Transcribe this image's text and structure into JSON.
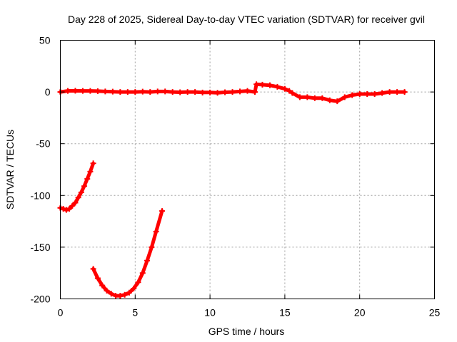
{
  "chart_data": {
    "type": "scatter",
    "title": "Day 228 of 2025, Sidereal Day-to-day VTEC variation (SDTVAR) for receiver gvil",
    "xlabel": "GPS time / hours",
    "ylabel": "SDTVAR / TECUs",
    "xlim": [
      0,
      25
    ],
    "ylim": [
      -200,
      50
    ],
    "x_ticks": [
      0,
      5,
      10,
      15,
      20,
      25
    ],
    "y_ticks": [
      -200,
      -150,
      -100,
      -50,
      0,
      50
    ],
    "grid": true,
    "legend": "none",
    "series": [
      {
        "color": "#ff0000",
        "values": [
          [
            0.0,
            0.0
          ],
          [
            0.5,
            1.0
          ],
          [
            1.0,
            1.2
          ],
          [
            1.5,
            1.0
          ],
          [
            2.0,
            1.0
          ],
          [
            2.5,
            0.8
          ],
          [
            3.0,
            0.5
          ],
          [
            3.5,
            0.3
          ],
          [
            4.0,
            0.0
          ],
          [
            4.5,
            0.0
          ],
          [
            5.0,
            0.0
          ],
          [
            5.5,
            0.3
          ],
          [
            6.0,
            0.0
          ],
          [
            6.5,
            0.5
          ],
          [
            7.0,
            0.5
          ],
          [
            7.5,
            0.0
          ],
          [
            8.0,
            -0.3
          ],
          [
            8.5,
            0.0
          ],
          [
            9.0,
            0.0
          ],
          [
            9.5,
            -0.5
          ],
          [
            10.0,
            -0.5
          ],
          [
            10.5,
            -0.8
          ],
          [
            11.0,
            -0.3
          ],
          [
            11.5,
            0.0
          ],
          [
            12.0,
            0.5
          ],
          [
            12.5,
            1.0
          ],
          [
            13.0,
            0.0
          ],
          [
            13.1,
            7.5
          ],
          [
            13.5,
            7.0
          ],
          [
            14.0,
            6.5
          ],
          [
            14.5,
            5.0
          ],
          [
            15.0,
            3.0
          ],
          [
            15.3,
            1.0
          ],
          [
            15.5,
            -1.0
          ],
          [
            16.0,
            -5.0
          ],
          [
            16.5,
            -5.0
          ],
          [
            17.0,
            -6.0
          ],
          [
            17.5,
            -6.0
          ],
          [
            18.0,
            -8.0
          ],
          [
            18.5,
            -9.0
          ],
          [
            19.0,
            -5.0
          ],
          [
            19.5,
            -3.0
          ],
          [
            20.0,
            -2.0
          ],
          [
            20.5,
            -2.0
          ],
          [
            21.0,
            -2.0
          ],
          [
            21.5,
            -1.0
          ],
          [
            22.0,
            0.0
          ],
          [
            22.5,
            0.0
          ],
          [
            23.0,
            0.0
          ]
        ]
      },
      {
        "color": "#ff0000",
        "values": [
          [
            0.0,
            -112
          ],
          [
            0.2,
            -113
          ],
          [
            0.4,
            -114
          ],
          [
            0.6,
            -113
          ],
          [
            0.8,
            -110
          ],
          [
            1.0,
            -107
          ],
          [
            1.2,
            -102
          ],
          [
            1.4,
            -97
          ],
          [
            1.6,
            -91
          ],
          [
            1.8,
            -84
          ],
          [
            2.0,
            -77
          ],
          [
            2.2,
            -69
          ]
        ]
      },
      {
        "color": "#ff0000",
        "values": [
          [
            2.2,
            -171
          ],
          [
            2.5,
            -180
          ],
          [
            2.8,
            -187
          ],
          [
            3.1,
            -192
          ],
          [
            3.4,
            -195
          ],
          [
            3.7,
            -197
          ],
          [
            4.0,
            -197
          ],
          [
            4.3,
            -196
          ],
          [
            4.6,
            -194
          ],
          [
            4.9,
            -190
          ],
          [
            5.2,
            -184
          ],
          [
            5.5,
            -175
          ],
          [
            5.8,
            -163
          ],
          [
            6.1,
            -150
          ],
          [
            6.4,
            -135
          ],
          [
            6.8,
            -115
          ]
        ]
      }
    ]
  }
}
